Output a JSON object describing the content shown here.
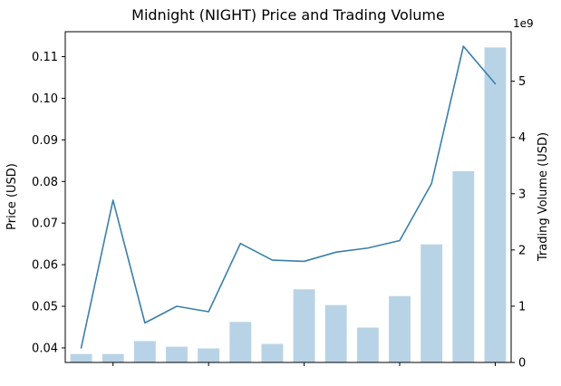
{
  "figure": {
    "title": "Midnight (NIGHT) Price and Trading Volume",
    "left_axis_label": "Price (USD)",
    "right_axis_label": "Trading Volume (USD)",
    "offset_text": "1e9"
  },
  "chart_data": {
    "type": "line+bar",
    "title": "Midnight (NIGHT) Price and Trading Volume",
    "xlabel": "",
    "x": [
      1,
      2,
      3,
      4,
      5,
      6,
      7,
      8,
      9,
      10,
      11,
      12,
      13,
      14
    ],
    "x_tick_positions": [
      2,
      5,
      8,
      11,
      14
    ],
    "x_tick_labels": [],
    "series": [
      {
        "name": "Price (USD)",
        "type": "line",
        "axis": "left",
        "color": "#3a7fab",
        "values": [
          0.04,
          0.0755,
          0.046,
          0.05,
          0.0487,
          0.0651,
          0.0611,
          0.0608,
          0.063,
          0.064,
          0.0658,
          0.0795,
          0.1125,
          0.1035
        ]
      },
      {
        "name": "Trading Volume (USD)",
        "type": "bar",
        "axis": "right",
        "color": "#b9d3e6",
        "values": [
          150000000.0,
          150000000.0,
          380000000.0,
          280000000.0,
          250000000.0,
          720000000.0,
          330000000.0,
          1300000000.0,
          1020000000.0,
          620000000.0,
          1180000000.0,
          2100000000.0,
          3400000000.0,
          5600000000.0
        ]
      }
    ],
    "left_ylabel": "Price (USD)",
    "right_ylabel": "Trading Volume (USD)",
    "left_ylim": [
      0.0365,
      0.116
    ],
    "left_ticks": [
      0.04,
      0.05,
      0.06,
      0.07,
      0.08,
      0.09,
      0.1,
      0.11
    ],
    "right_ylim": [
      0,
      5880000000.0
    ],
    "right_ticks": [
      0,
      1000000000.0,
      2000000000.0,
      3000000000.0,
      4000000000.0,
      5000000000.0
    ],
    "right_tick_labels": [
      "0",
      "1",
      "2",
      "3",
      "4",
      "5"
    ],
    "right_offset_text": "1e9",
    "grid": false,
    "legend": "none"
  }
}
